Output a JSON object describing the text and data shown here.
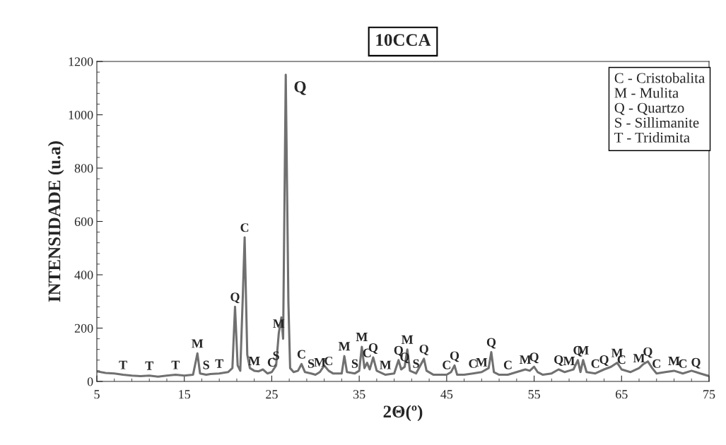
{
  "chart_data": {
    "type": "line",
    "title": "10CCA",
    "xlabel": "2Θ(º)",
    "ylabel": "INTENSIDADE (u.a)",
    "xlim": [
      5,
      75
    ],
    "xticks": [
      5,
      15,
      25,
      35,
      45,
      55,
      65,
      75
    ],
    "ylim": [
      0,
      1200
    ],
    "yticks": [
      0,
      200,
      400,
      600,
      800,
      1000,
      1200
    ],
    "grid": false,
    "legend": false,
    "marker": "none",
    "line_style": "solid",
    "series": [
      {
        "color": "#707070",
        "x": [
          5,
          6,
          7,
          8,
          9,
          10,
          11,
          12,
          13,
          14,
          15,
          16,
          16.5,
          16.8,
          17.5,
          18,
          19,
          20,
          20.5,
          20.8,
          21.1,
          21.4,
          21.7,
          21.9,
          22.2,
          22.5,
          23,
          23.5,
          24,
          24.5,
          25,
          25.5,
          25.8,
          26.1,
          26.3,
          26.6,
          26.9,
          27.1,
          27.5,
          28,
          28.4,
          28.8,
          29.5,
          30,
          30.5,
          31,
          31.5,
          32,
          33,
          33.3,
          33.6,
          34.5,
          35,
          35.3,
          35.6,
          35.9,
          36.2,
          36.6,
          37,
          38,
          39,
          39.5,
          39.8,
          40.2,
          40.5,
          40.8,
          41.5,
          42.4,
          42.7,
          43.5,
          45,
          45.5,
          45.9,
          46.2,
          47,
          48,
          49,
          49.8,
          50.1,
          50.4,
          51,
          52,
          53,
          54,
          54.5,
          55,
          55.4,
          56,
          57,
          57.8,
          58.5,
          59,
          59.5,
          60,
          60.3,
          60.6,
          61,
          62,
          63,
          63.8,
          64.5,
          65,
          66,
          67,
          67.5,
          68,
          68.5,
          69,
          70,
          71,
          72,
          73,
          73.5,
          74,
          75
        ],
        "values": [
          38,
          32,
          30,
          25,
          22,
          20,
          22,
          18,
          22,
          25,
          22,
          25,
          105,
          30,
          25,
          28,
          30,
          35,
          50,
          280,
          60,
          40,
          330,
          540,
          100,
          50,
          40,
          38,
          45,
          30,
          35,
          60,
          180,
          240,
          160,
          1150,
          300,
          50,
          35,
          40,
          65,
          35,
          30,
          25,
          35,
          60,
          40,
          30,
          30,
          95,
          35,
          30,
          40,
          130,
          50,
          70,
          45,
          90,
          40,
          25,
          30,
          80,
          45,
          55,
          120,
          40,
          30,
          85,
          40,
          25,
          25,
          35,
          60,
          25,
          25,
          30,
          35,
          50,
          110,
          35,
          25,
          25,
          35,
          45,
          40,
          55,
          35,
          25,
          30,
          45,
          35,
          40,
          45,
          80,
          35,
          80,
          35,
          30,
          45,
          55,
          70,
          45,
          35,
          50,
          65,
          75,
          50,
          30,
          35,
          40,
          30,
          40,
          35,
          30,
          20
        ]
      }
    ],
    "annotations": [
      {
        "text": "T",
        "x": 8,
        "y": 25
      },
      {
        "text": "T",
        "x": 11,
        "y": 22
      },
      {
        "text": "T",
        "x": 14,
        "y": 25
      },
      {
        "text": "M",
        "x": 16.5,
        "y": 105
      },
      {
        "text": "S",
        "x": 17.5,
        "y": 25
      },
      {
        "text": "T",
        "x": 19,
        "y": 30
      },
      {
        "text": "Q",
        "x": 20.8,
        "y": 280
      },
      {
        "text": "C",
        "x": 21.9,
        "y": 540
      },
      {
        "text": "M",
        "x": 23,
        "y": 40
      },
      {
        "text": "C",
        "x": 25,
        "y": 35
      },
      {
        "text": "S",
        "x": 25.5,
        "y": 60
      },
      {
        "text": "M",
        "x": 25.8,
        "y": 180
      },
      {
        "text": "Q",
        "x": 26.6,
        "y": 1150
      },
      {
        "text": "C",
        "x": 28.4,
        "y": 65
      },
      {
        "text": "S",
        "x": 29.5,
        "y": 30
      },
      {
        "text": "M",
        "x": 30.5,
        "y": 35
      },
      {
        "text": "C",
        "x": 31.5,
        "y": 40
      },
      {
        "text": "M",
        "x": 33.3,
        "y": 95
      },
      {
        "text": "S",
        "x": 34.5,
        "y": 30
      },
      {
        "text": "M",
        "x": 35.3,
        "y": 130
      },
      {
        "text": "C",
        "x": 35.9,
        "y": 70
      },
      {
        "text": "Q",
        "x": 36.6,
        "y": 90
      },
      {
        "text": "M",
        "x": 38,
        "y": 25
      },
      {
        "text": "Q",
        "x": 39.5,
        "y": 80
      },
      {
        "text": "Q",
        "x": 40.2,
        "y": 55
      },
      {
        "text": "M",
        "x": 40.5,
        "y": 120
      },
      {
        "text": "S",
        "x": 41.5,
        "y": 30
      },
      {
        "text": "Q",
        "x": 42.4,
        "y": 85
      },
      {
        "text": "C",
        "x": 45,
        "y": 25
      },
      {
        "text": "Q",
        "x": 45.9,
        "y": 60
      },
      {
        "text": "C",
        "x": 48,
        "y": 30
      },
      {
        "text": "M",
        "x": 49,
        "y": 35
      },
      {
        "text": "Q",
        "x": 50.1,
        "y": 110
      },
      {
        "text": "C",
        "x": 52,
        "y": 25
      },
      {
        "text": "M",
        "x": 54,
        "y": 45
      },
      {
        "text": "Q",
        "x": 55,
        "y": 55
      },
      {
        "text": "Q",
        "x": 57.8,
        "y": 45
      },
      {
        "text": "M",
        "x": 59,
        "y": 40
      },
      {
        "text": "Q",
        "x": 60,
        "y": 80
      },
      {
        "text": "M",
        "x": 60.6,
        "y": 80
      },
      {
        "text": "C",
        "x": 62,
        "y": 30
      },
      {
        "text": "Q",
        "x": 63,
        "y": 45
      },
      {
        "text": "M",
        "x": 64.5,
        "y": 70
      },
      {
        "text": "C",
        "x": 65,
        "y": 45
      },
      {
        "text": "M",
        "x": 67,
        "y": 50
      },
      {
        "text": "Q",
        "x": 68,
        "y": 75
      },
      {
        "text": "C",
        "x": 69,
        "y": 30
      },
      {
        "text": "M",
        "x": 71,
        "y": 40
      },
      {
        "text": "C",
        "x": 72,
        "y": 30
      },
      {
        "text": "Q",
        "x": 73.5,
        "y": 35
      },
      "C - Cristobalita",
      "M - Mulita",
      "Q - Quartzo",
      "S - Sillimanite",
      "T - Tridimita"
    ]
  }
}
